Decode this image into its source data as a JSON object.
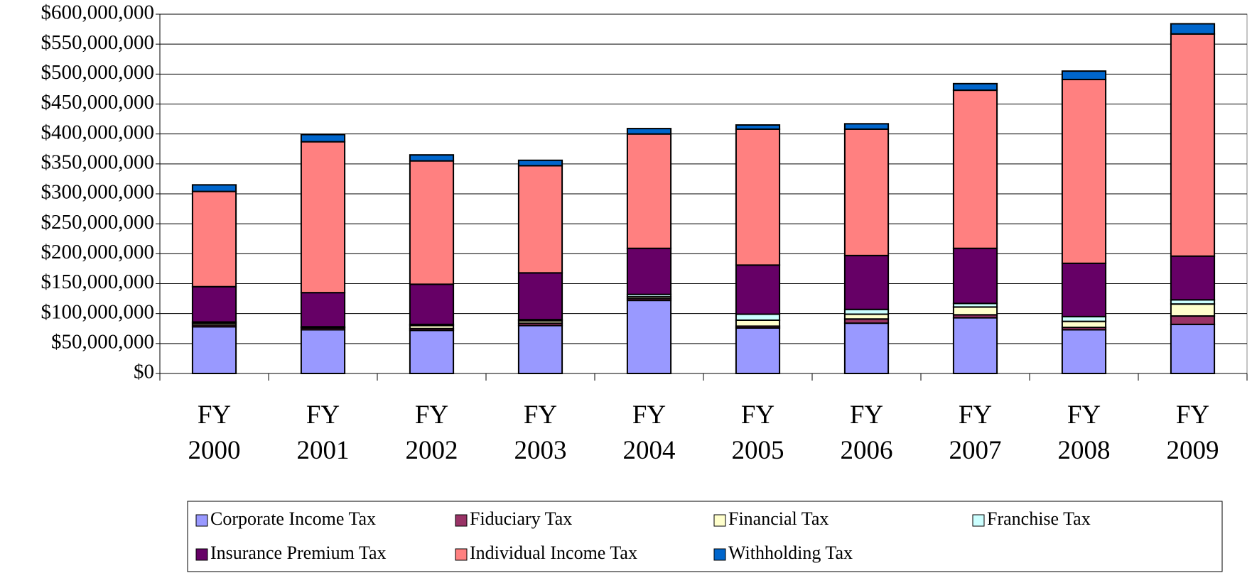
{
  "chart_data": {
    "type": "stacked_bar",
    "categories": [
      "FY 2000",
      "FY 2001",
      "FY 2002",
      "FY 2003",
      "FY 2004",
      "FY 2005",
      "FY 2006",
      "FY 2007",
      "FY 2008",
      "FY 2009"
    ],
    "series": [
      {
        "name": "Corporate Income Tax",
        "color": "#9999ff",
        "values": [
          78000000,
          73000000,
          72000000,
          80000000,
          122000000,
          76000000,
          84000000,
          93000000,
          73000000,
          82000000
        ]
      },
      {
        "name": "Fiduciary Tax",
        "color": "#993366",
        "values": [
          3000000,
          3000000,
          3000000,
          4000000,
          3000000,
          3000000,
          7000000,
          5000000,
          4000000,
          14000000
        ]
      },
      {
        "name": "Financial Tax",
        "color": "#ffffcc",
        "values": [
          3000000,
          1000000,
          5000000,
          4000000,
          3000000,
          10000000,
          8000000,
          13000000,
          10000000,
          20000000
        ]
      },
      {
        "name": "Franchise Tax",
        "color": "#ccffff",
        "values": [
          2000000,
          1000000,
          2000000,
          2000000,
          4000000,
          10000000,
          8000000,
          6000000,
          8000000,
          7000000
        ]
      },
      {
        "name": "Insurance Premium Tax",
        "color": "#660066",
        "values": [
          59000000,
          57000000,
          67000000,
          78000000,
          77000000,
          82000000,
          90000000,
          92000000,
          89000000,
          73000000
        ]
      },
      {
        "name": "Individual Income Tax",
        "color": "#ff8080",
        "values": [
          159000000,
          252000000,
          206000000,
          179000000,
          191000000,
          227000000,
          211000000,
          264000000,
          307000000,
          371000000
        ]
      },
      {
        "name": "Withholding Tax",
        "color": "#0066cc",
        "values": [
          11000000,
          12000000,
          10000000,
          9000000,
          9000000,
          7000000,
          9000000,
          11000000,
          14000000,
          17000000
        ]
      }
    ],
    "ylim": [
      0,
      600000000
    ],
    "yticks": [
      {
        "value": 0,
        "label": "$0"
      },
      {
        "value": 50000000,
        "label": "$50,000,000"
      },
      {
        "value": 100000000,
        "label": "$100,000,000"
      },
      {
        "value": 150000000,
        "label": "$150,000,000"
      },
      {
        "value": 200000000,
        "label": "$200,000,000"
      },
      {
        "value": 250000000,
        "label": "$250,000,000"
      },
      {
        "value": 300000000,
        "label": "$300,000,000"
      },
      {
        "value": 350000000,
        "label": "$350,000,000"
      },
      {
        "value": 400000000,
        "label": "$400,000,000"
      },
      {
        "value": 450000000,
        "label": "$450,000,000"
      },
      {
        "value": 500000000,
        "label": "$500,000,000"
      },
      {
        "value": 550000000,
        "label": "$550,000,000"
      },
      {
        "value": 600000000,
        "label": "$600,000,000"
      }
    ],
    "grid": true,
    "legend": "bottom"
  }
}
